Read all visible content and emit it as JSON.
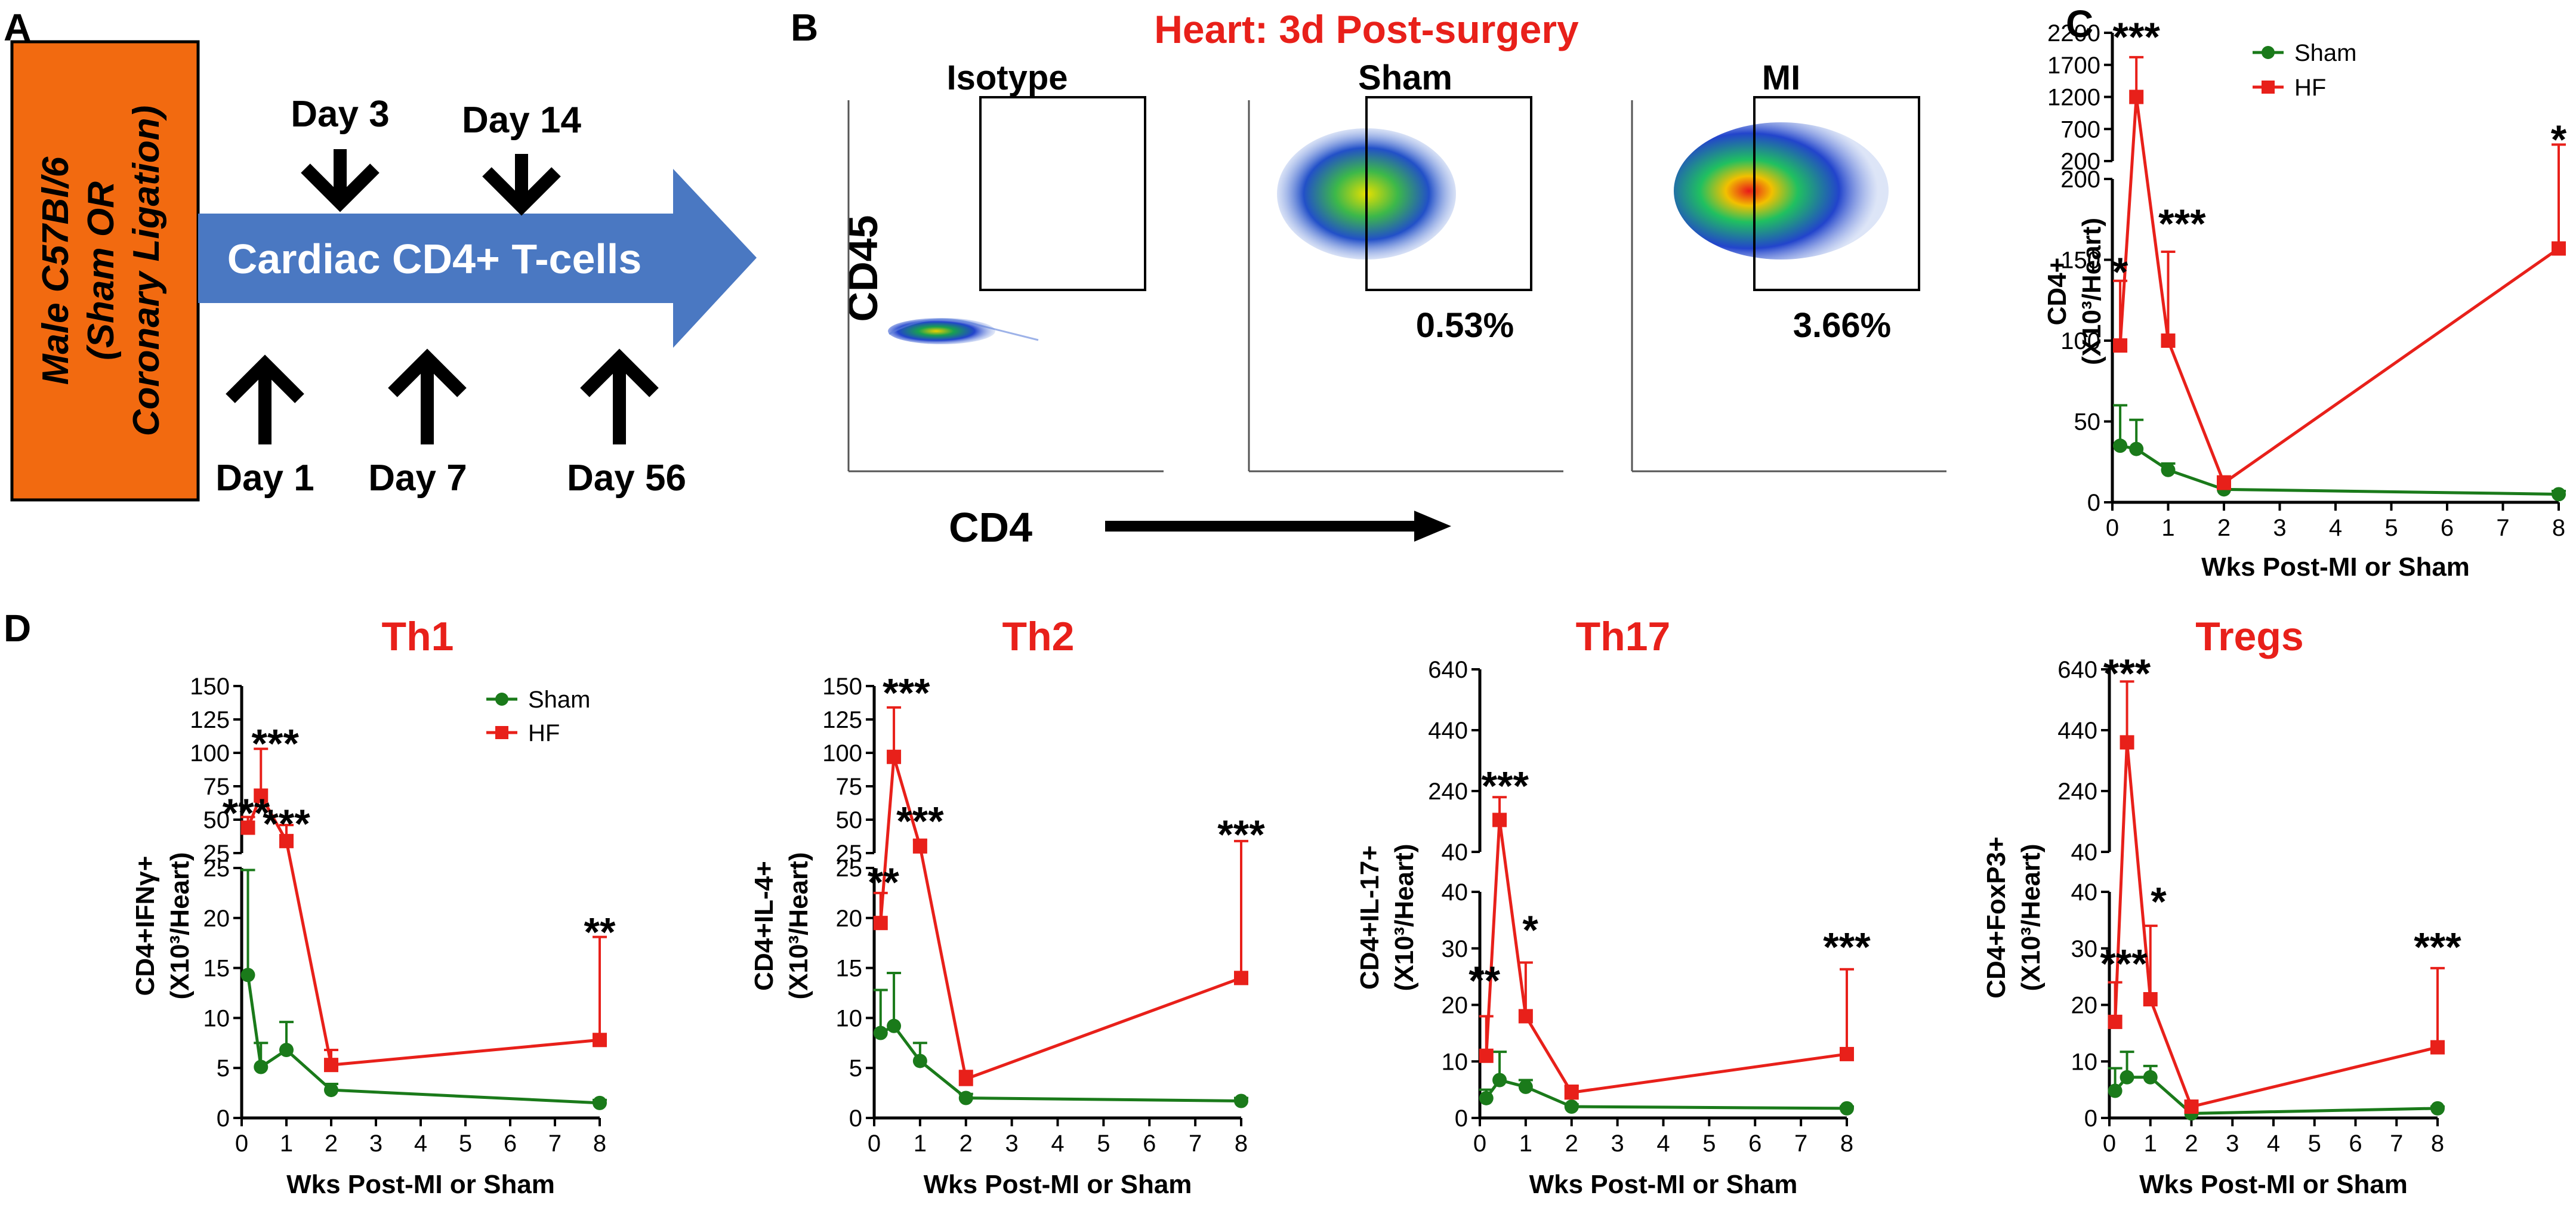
{
  "colors": {
    "sham": "#1a7a1a",
    "hf": "#e8201a",
    "orange": "#f26a10",
    "arrow_blue": "#4a78c2",
    "red_title": "#e8201a"
  },
  "panel_a": {
    "letter": "A",
    "box_lines": [
      "Male C57Bl/6",
      "(Sham OR",
      "Coronary Ligation)"
    ],
    "arrow_label": "Cardiac CD4+ T-cells",
    "top_days": [
      "Day 3",
      "Day 14"
    ],
    "bottom_days": [
      "Day 1",
      "Day 7",
      "Day 56"
    ]
  },
  "panel_b": {
    "letter": "B",
    "title": "Heart: 3d Post-surgery",
    "plots": [
      {
        "label": "Isotype",
        "percent": ""
      },
      {
        "label": "Sham",
        "percent": "0.53%"
      },
      {
        "label": "MI",
        "percent": "3.66%"
      }
    ],
    "y_label": "CD45",
    "x_label": "CD4"
  },
  "panel_c_letter": "C",
  "panel_d_letter": "D",
  "legend": {
    "sham": "Sham",
    "hf": "HF"
  },
  "chart_data": [
    {
      "id": "C",
      "type": "line",
      "title": "",
      "ylabel": "CD4+",
      "ylabel_unit": "(X10³/Heart)",
      "xlabel": "Wks Post-MI or Sham",
      "x_ticks": [
        0,
        1,
        2,
        3,
        4,
        5,
        6,
        7,
        8
      ],
      "xlim": [
        0,
        8
      ],
      "broken_axis": {
        "lower": [
          0,
          200
        ],
        "upper": [
          200,
          2200
        ]
      },
      "y_ticks_lower": [
        0,
        50,
        100,
        150,
        200
      ],
      "y_ticks_upper": [
        200,
        700,
        1200,
        1700,
        2200
      ],
      "series": [
        {
          "name": "Sham",
          "x": [
            0.14,
            0.43,
            1,
            2,
            8
          ],
          "values": [
            35,
            33,
            20,
            8,
            5
          ],
          "err": [
            25,
            18,
            4,
            2,
            2
          ]
        },
        {
          "name": "HF",
          "x": [
            0.14,
            0.43,
            1,
            2,
            8
          ],
          "values": [
            97,
            1200,
            100,
            12,
            157
          ],
          "err": [
            40,
            620,
            55,
            4,
            300
          ]
        }
      ],
      "annotations": [
        {
          "text": "***",
          "x": 0.43,
          "y": 2200
        },
        {
          "text": "*",
          "x": 0.14,
          "y": 145
        },
        {
          "text": "***",
          "x": 1.25,
          "y": 175
        },
        {
          "text": "*",
          "x": 8,
          "y": 600
        }
      ]
    },
    {
      "id": "Th1",
      "type": "line",
      "title": "Th1",
      "ylabel": "CD4+IFNγ+",
      "ylabel_unit": "(X10³/Heart)",
      "xlabel": "Wks Post-MI or Sham",
      "x_ticks": [
        0,
        1,
        2,
        3,
        4,
        5,
        6,
        7,
        8
      ],
      "xlim": [
        0,
        8
      ],
      "broken_axis": {
        "lower": [
          0,
          25
        ],
        "upper": [
          25,
          150
        ]
      },
      "y_ticks_lower": [
        0,
        5,
        10,
        15,
        20,
        25
      ],
      "y_ticks_upper": [
        25,
        50,
        75,
        100,
        125,
        150
      ],
      "series": [
        {
          "name": "Sham",
          "x": [
            0.14,
            0.43,
            1,
            2,
            8
          ],
          "values": [
            14.3,
            5.1,
            6.8,
            2.8,
            1.5
          ],
          "err": [
            10.5,
            2.4,
            2.8,
            0.6,
            0.3
          ]
        },
        {
          "name": "HF",
          "x": [
            0.14,
            0.43,
            1,
            2,
            8
          ],
          "values": [
            44,
            68,
            34,
            5.3,
            7.8
          ],
          "err": [
            8,
            35,
            12,
            1.5,
            10.3
          ]
        }
      ],
      "annotations": [
        {
          "text": "***",
          "x": 0.75,
          "y": 110
        },
        {
          "text": "***",
          "x": 0.1,
          "y": 58
        },
        {
          "text": "***",
          "x": 1.0,
          "y": 50
        },
        {
          "text": "**",
          "x": 8,
          "y": 19
        }
      ]
    },
    {
      "id": "Th2",
      "type": "line",
      "title": "Th2",
      "ylabel": "CD4+IL-4+",
      "ylabel_unit": "(X10³/Heart)",
      "xlabel": "Wks Post-MI or Sham",
      "x_ticks": [
        0,
        1,
        2,
        3,
        4,
        5,
        6,
        7,
        8
      ],
      "xlim": [
        0,
        8
      ],
      "broken_axis": {
        "lower": [
          0,
          25
        ],
        "upper": [
          25,
          150
        ]
      },
      "y_ticks_lower": [
        0,
        5,
        10,
        15,
        20,
        25
      ],
      "y_ticks_upper": [
        25,
        50,
        75,
        100,
        125,
        150
      ],
      "series": [
        {
          "name": "Sham",
          "x": [
            0.14,
            0.43,
            1,
            2,
            8
          ],
          "values": [
            8.5,
            9.2,
            5.7,
            2.0,
            1.7
          ],
          "err": [
            4.3,
            5.3,
            1.8,
            0.4,
            0.3
          ]
        },
        {
          "name": "HF",
          "x": [
            0.14,
            0.43,
            1,
            2,
            8
          ],
          "values": [
            19.5,
            97,
            30,
            3.9,
            14
          ],
          "err": [
            3,
            37,
            5,
            0.8,
            20
          ]
        }
      ],
      "annotations": [
        {
          "text": "***",
          "x": 0.7,
          "y": 148
        },
        {
          "text": "**",
          "x": 0.2,
          "y": 24
        },
        {
          "text": "***",
          "x": 1.0,
          "y": 52
        },
        {
          "text": "***",
          "x": 8,
          "y": 42
        }
      ]
    },
    {
      "id": "Th17",
      "type": "line",
      "title": "Th17",
      "ylabel": "CD4+IL-17+",
      "ylabel_unit": "(X10³/Heart)",
      "xlabel": "Wks Post-MI or Sham",
      "x_ticks": [
        0,
        1,
        2,
        3,
        4,
        5,
        6,
        7,
        8
      ],
      "xlim": [
        0,
        8
      ],
      "broken_axis": {
        "lower": [
          0,
          40
        ],
        "upper": [
          40,
          640
        ]
      },
      "y_ticks_lower": [
        0,
        10,
        20,
        30,
        40
      ],
      "y_ticks_upper": [
        40,
        240,
        440,
        640
      ],
      "series": [
        {
          "name": "Sham",
          "x": [
            0.14,
            0.43,
            1,
            2,
            8
          ],
          "values": [
            3.5,
            6.7,
            5.5,
            2.0,
            1.7
          ],
          "err": [
            1.5,
            5.0,
            1.2,
            0.4,
            0.3
          ]
        },
        {
          "name": "HF",
          "x": [
            0.14,
            0.43,
            1,
            2,
            8
          ],
          "values": [
            11,
            145,
            18,
            4.5,
            11.3
          ],
          "err": [
            7,
            75,
            9.5,
            1.2,
            15
          ]
        }
      ],
      "annotations": [
        {
          "text": "***",
          "x": 0.55,
          "y": 270
        },
        {
          "text": "**",
          "x": 0.1,
          "y": 25
        },
        {
          "text": "*",
          "x": 1.1,
          "y": 34
        },
        {
          "text": "***",
          "x": 8,
          "y": 31
        }
      ]
    },
    {
      "id": "Tregs",
      "type": "line",
      "title": "Tregs",
      "ylabel": "CD4+FoxP3+",
      "ylabel_unit": "(X10³/Heart)",
      "xlabel": "Wks Post-MI or Sham",
      "x_ticks": [
        0,
        1,
        2,
        3,
        4,
        5,
        6,
        7,
        8
      ],
      "xlim": [
        0,
        8
      ],
      "broken_axis": {
        "lower": [
          0,
          40
        ],
        "upper": [
          40,
          640
        ]
      },
      "y_ticks_lower": [
        0,
        10,
        20,
        30,
        40
      ],
      "y_ticks_upper": [
        40,
        240,
        440,
        640
      ],
      "series": [
        {
          "name": "Sham",
          "x": [
            0.14,
            0.43,
            1,
            2,
            8
          ],
          "values": [
            4.8,
            7.2,
            7.2,
            0.8,
            1.7
          ],
          "err": [
            4,
            4.5,
            2,
            0.5,
            0.3
          ]
        },
        {
          "name": "HF",
          "x": [
            0.14,
            0.43,
            1,
            2,
            8
          ],
          "values": [
            17,
            400,
            21,
            2,
            12.5
          ],
          "err": [
            7,
            200,
            13,
            0.5,
            14
          ]
        }
      ],
      "annotations": [
        {
          "text": "***",
          "x": 0.43,
          "y": 690
        },
        {
          "text": "***",
          "x": 0.35,
          "y": 28
        },
        {
          "text": "*",
          "x": 1.2,
          "y": 39
        },
        {
          "text": "***",
          "x": 8,
          "y": 31
        }
      ]
    }
  ]
}
